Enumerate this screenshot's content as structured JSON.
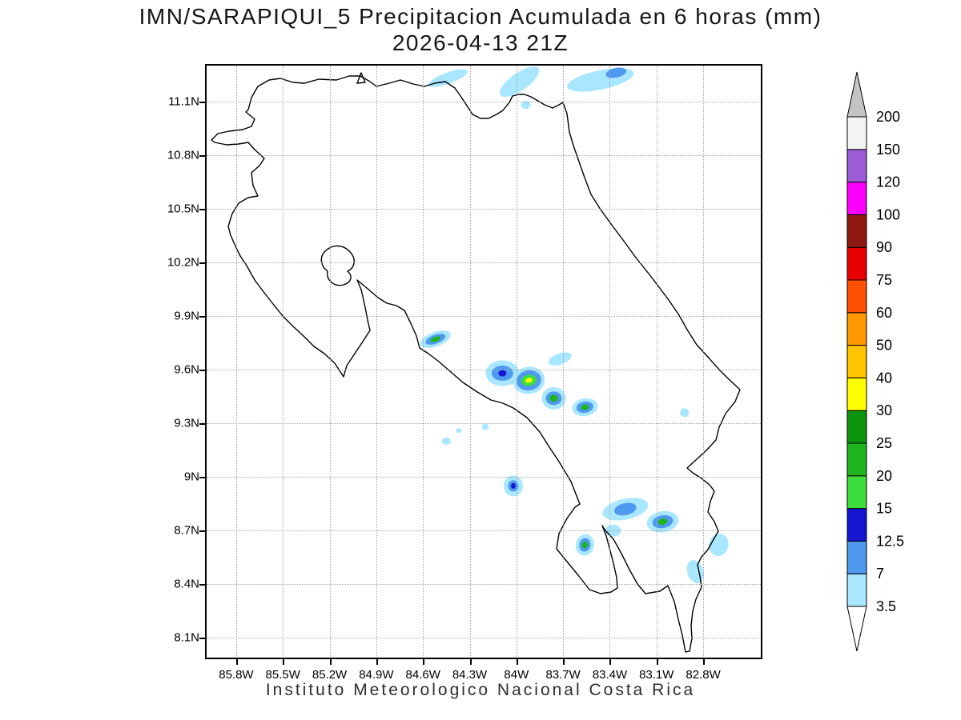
{
  "title": {
    "line1": "IMN/SARAPIQUI_5 Precipitacion Acumulada en 6 horas (mm)",
    "line2": "2026-04-13 21Z"
  },
  "caption": "Instituto Meteorologico Nacional Costa Rica",
  "chart_data": {
    "type": "map-contour",
    "region": "Costa Rica",
    "variable": "Precipitacion Acumulada en 6 horas",
    "units": "mm",
    "model": "IMN/SARAPIQUI_5",
    "valid_time": "2026-04-13 21Z",
    "bounds": {
      "lon_west": 85.99,
      "lon_east": 82.43,
      "lat_north": 11.3,
      "lat_south": 7.99
    },
    "xticks": [
      {
        "value": 85.8,
        "label": "85.8W"
      },
      {
        "value": 85.5,
        "label": "85.5W"
      },
      {
        "value": 85.2,
        "label": "85.2W"
      },
      {
        "value": 84.9,
        "label": "84.9W"
      },
      {
        "value": 84.6,
        "label": "84.6W"
      },
      {
        "value": 84.3,
        "label": "84.3W"
      },
      {
        "value": 84.0,
        "label": "84W"
      },
      {
        "value": 83.7,
        "label": "83.7W"
      },
      {
        "value": 83.4,
        "label": "83.4W"
      },
      {
        "value": 83.1,
        "label": "83.1W"
      },
      {
        "value": 82.8,
        "label": "82.8W"
      }
    ],
    "yticks": [
      {
        "value": 11.1,
        "label": "11.1N"
      },
      {
        "value": 10.8,
        "label": "10.8N"
      },
      {
        "value": 10.5,
        "label": "10.5N"
      },
      {
        "value": 10.2,
        "label": "10.2N"
      },
      {
        "value": 9.9,
        "label": "9.9N"
      },
      {
        "value": 9.6,
        "label": "9.6N"
      },
      {
        "value": 9.3,
        "label": "9.3N"
      },
      {
        "value": 9.0,
        "label": "9N"
      },
      {
        "value": 8.7,
        "label": "8.7N"
      },
      {
        "value": 8.4,
        "label": "8.4N"
      },
      {
        "value": 8.1,
        "label": "8.1N"
      }
    ],
    "colorbar": {
      "labels": [
        "200",
        "150",
        "120",
        "100",
        "90",
        "75",
        "60",
        "50",
        "40",
        "30",
        "25",
        "20",
        "15",
        "12.5",
        "7",
        "3.5"
      ],
      "stops": [
        {
          "level": 3.5,
          "color": "#a9e6ff"
        },
        {
          "level": 7,
          "color": "#4f9af0"
        },
        {
          "level": 12.5,
          "color": "#1515d2"
        },
        {
          "level": 15,
          "color": "#3ddc3d"
        },
        {
          "level": 20,
          "color": "#1eb41e"
        },
        {
          "level": 25,
          "color": "#0c940c"
        },
        {
          "level": 30,
          "color": "#ffff00"
        },
        {
          "level": 40,
          "color": "#ffc400"
        },
        {
          "level": 50,
          "color": "#ff9800"
        },
        {
          "level": 60,
          "color": "#ff5000"
        },
        {
          "level": 75,
          "color": "#e80000"
        },
        {
          "level": 90,
          "color": "#8f1a12"
        },
        {
          "level": 100,
          "color": "#fb00fb"
        },
        {
          "level": 120,
          "color": "#9b5cd6"
        },
        {
          "level": 150,
          "color": "#f4f4f4"
        }
      ],
      "over_color": "#c4c4c4",
      "under_color": "#ffffff"
    },
    "precip_cells": [
      {
        "lon": 84.44,
        "lat": 11.23,
        "rot": -20,
        "rings": [
          [
            3.5,
            52,
            14
          ]
        ]
      },
      {
        "lon": 83.98,
        "lat": 11.21,
        "rot": -35,
        "rings": [
          [
            3.5,
            58,
            22
          ]
        ]
      },
      {
        "lon": 83.94,
        "lat": 11.08,
        "rot": 0,
        "rings": [
          [
            3.5,
            12,
            10
          ]
        ]
      },
      {
        "lon": 83.46,
        "lat": 11.22,
        "rot": -12,
        "rings": [
          [
            3.5,
            85,
            24
          ]
        ]
      },
      {
        "lon": 83.36,
        "lat": 11.26,
        "rot": -12,
        "rings": [
          [
            7,
            26,
            12
          ]
        ]
      },
      {
        "lon": 84.52,
        "lat": 9.77,
        "rot": -20,
        "rings": [
          [
            3.5,
            40,
            18
          ],
          [
            7,
            26,
            11
          ],
          [
            20,
            13,
            6
          ]
        ]
      },
      {
        "lon": 84.09,
        "lat": 9.58,
        "rot": 0,
        "rings": [
          [
            3.5,
            42,
            32
          ],
          [
            7,
            27,
            19
          ],
          [
            12.5,
            10,
            8
          ]
        ]
      },
      {
        "lon": 83.92,
        "lat": 9.54,
        "rot": -10,
        "rings": [
          [
            3.5,
            40,
            34
          ],
          [
            7,
            31,
            25
          ],
          [
            15,
            19,
            14
          ],
          [
            30,
            9,
            6
          ]
        ]
      },
      {
        "lon": 83.72,
        "lat": 9.66,
        "rot": -20,
        "rings": [
          [
            3.5,
            30,
            14
          ]
        ]
      },
      {
        "lon": 83.76,
        "lat": 9.44,
        "rot": 0,
        "rings": [
          [
            3.5,
            30,
            28
          ],
          [
            7,
            20,
            17
          ],
          [
            20,
            10,
            9
          ]
        ]
      },
      {
        "lon": 83.56,
        "lat": 9.39,
        "rot": -10,
        "rings": [
          [
            3.5,
            32,
            22
          ],
          [
            7,
            21,
            14
          ],
          [
            20,
            10,
            7
          ]
        ]
      },
      {
        "lon": 84.2,
        "lat": 9.28,
        "rot": 0,
        "rings": [
          [
            3.5,
            9,
            8
          ]
        ]
      },
      {
        "lon": 84.37,
        "lat": 9.26,
        "rot": 0,
        "rings": [
          [
            3.5,
            7,
            6
          ]
        ]
      },
      {
        "lon": 84.45,
        "lat": 9.2,
        "rot": 0,
        "rings": [
          [
            3.5,
            11,
            9
          ]
        ]
      },
      {
        "lon": 84.02,
        "lat": 8.95,
        "rot": 0,
        "rings": [
          [
            3.5,
            24,
            26
          ],
          [
            7,
            13,
            14
          ],
          [
            12.5,
            6,
            7
          ]
        ]
      },
      {
        "lon": 83.3,
        "lat": 8.82,
        "rot": -12,
        "rings": [
          [
            3.5,
            58,
            26
          ],
          [
            7,
            28,
            15
          ]
        ]
      },
      {
        "lon": 83.06,
        "lat": 8.75,
        "rot": -10,
        "rings": [
          [
            3.5,
            40,
            26
          ],
          [
            7,
            26,
            16
          ],
          [
            20,
            12,
            8
          ]
        ]
      },
      {
        "lon": 83.38,
        "lat": 8.7,
        "rot": 0,
        "rings": [
          [
            3.5,
            20,
            15
          ]
        ]
      },
      {
        "lon": 83.56,
        "lat": 8.62,
        "rot": 10,
        "rings": [
          [
            3.5,
            23,
            27
          ],
          [
            7,
            14,
            17
          ],
          [
            20,
            7,
            9
          ]
        ]
      },
      {
        "lon": 82.92,
        "lat": 9.36,
        "rot": 0,
        "rings": [
          [
            3.5,
            11,
            11
          ]
        ]
      },
      {
        "lon": 82.7,
        "lat": 8.62,
        "rot": 15,
        "rings": [
          [
            3.5,
            24,
            28
          ]
        ]
      },
      {
        "lon": 82.85,
        "lat": 8.47,
        "rot": -20,
        "rings": [
          [
            3.5,
            20,
            30
          ]
        ]
      }
    ]
  }
}
